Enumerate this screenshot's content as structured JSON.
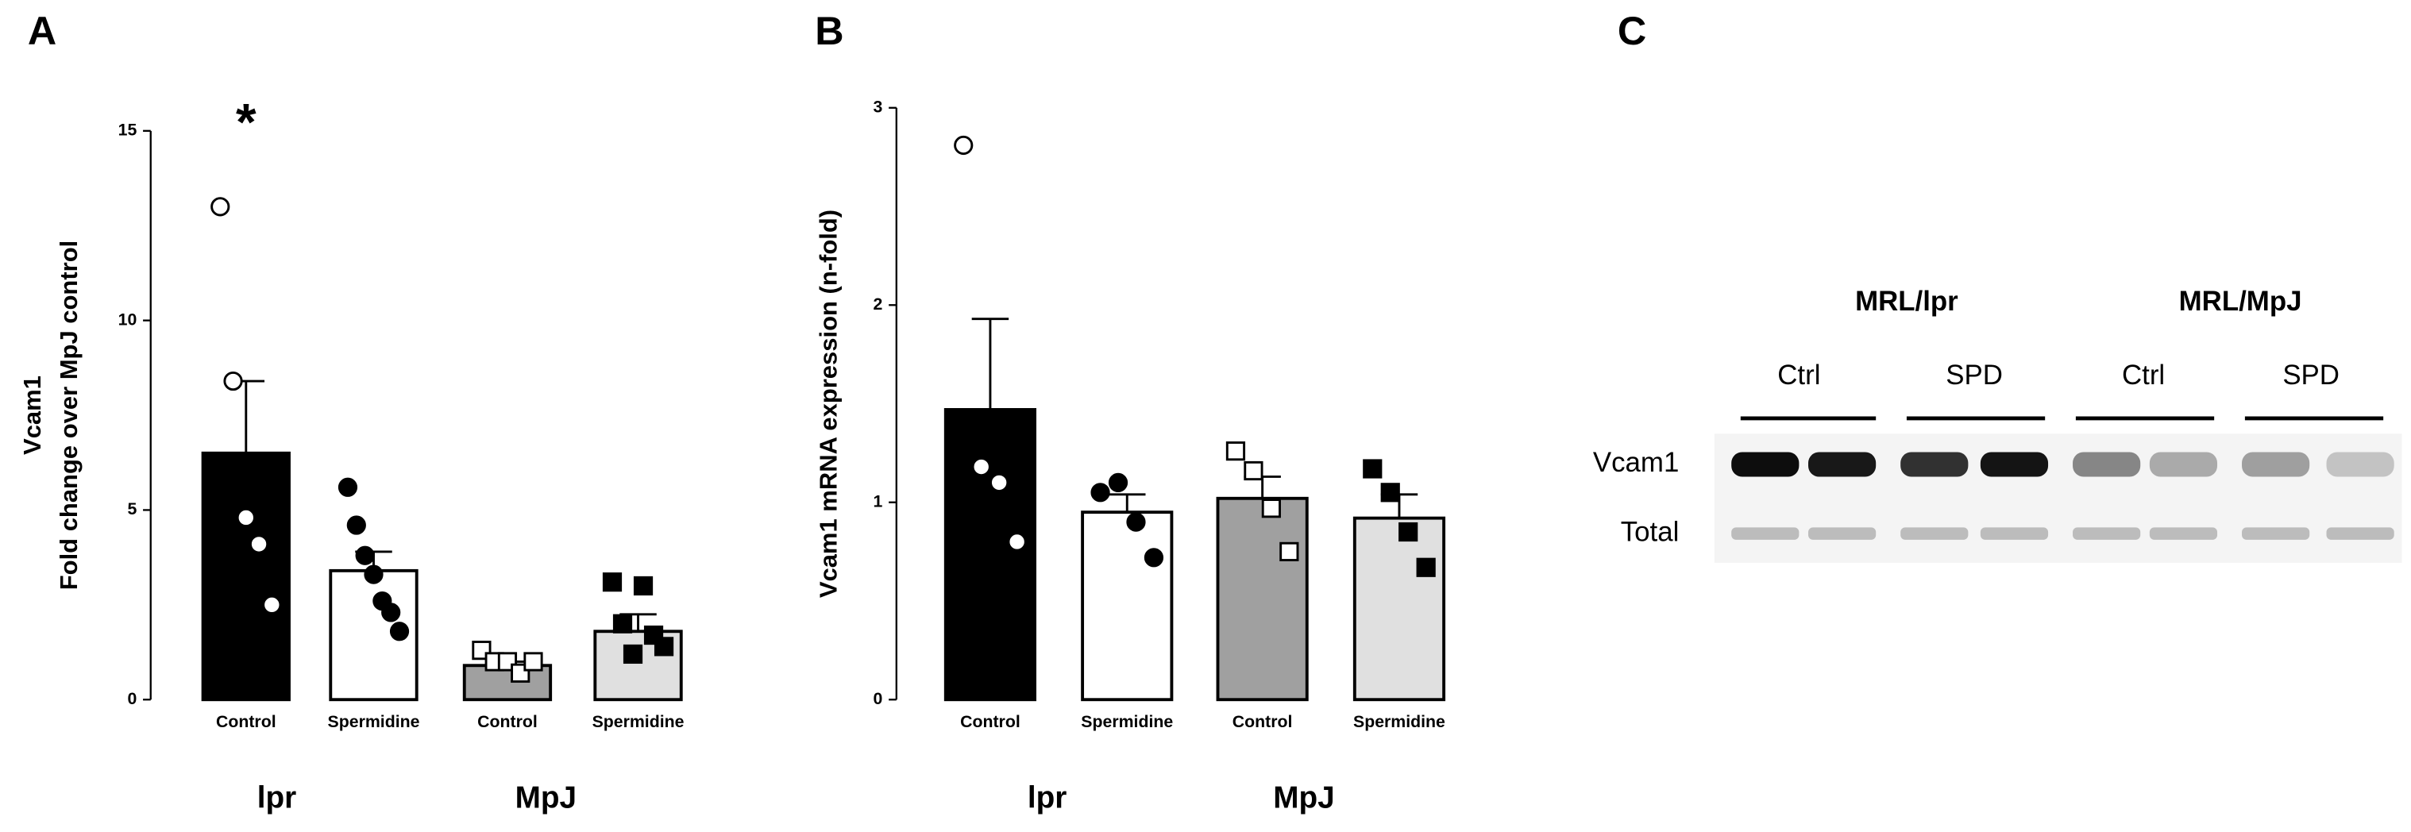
{
  "chart_data": [
    {
      "type": "bar",
      "panel": "A",
      "ylabel": [
        "Vcam1",
        "Fold change over MpJ control"
      ],
      "categories": [
        "Control",
        "Spermidine",
        "Control",
        "Spermidine"
      ],
      "groups": [
        "lpr",
        "MpJ"
      ],
      "values": [
        6.5,
        3.4,
        0.9,
        1.8
      ],
      "errors": [
        1.9,
        0.5,
        0.1,
        0.45
      ],
      "points": [
        [
          13.0,
          8.4,
          4.8,
          4.1,
          2.5
        ],
        [
          5.6,
          4.6,
          3.8,
          3.3,
          2.6,
          2.3,
          1.8
        ],
        [
          1.3,
          1.0,
          1.0,
          0.7,
          1.0
        ],
        [
          3.1,
          2.0,
          1.2,
          3.0,
          1.7,
          1.4
        ]
      ],
      "colors": [
        "#000000",
        "#ffffff",
        "#a0a0a0",
        "#e0e0e0"
      ],
      "markers": [
        "open-circle",
        "filled-circle",
        "open-square",
        "filled-square"
      ],
      "annotations": [
        {
          "category": 0,
          "text": "*"
        }
      ],
      "ylim": [
        0,
        15
      ],
      "yticks": [
        0,
        5,
        10,
        15
      ]
    },
    {
      "type": "bar",
      "panel": "B",
      "ylabel": [
        "Vcam1 mRNA expression (n-fold)"
      ],
      "categories": [
        "Control",
        "Spermidine",
        "Control",
        "Spermidine"
      ],
      "groups": [
        "lpr",
        "MpJ"
      ],
      "values": [
        1.47,
        0.95,
        1.02,
        0.92
      ],
      "errors": [
        0.46,
        0.09,
        0.11,
        0.12
      ],
      "points": [
        [
          2.81,
          1.18,
          1.1,
          0.8
        ],
        [
          1.05,
          1.1,
          0.9,
          0.72
        ],
        [
          1.26,
          1.16,
          0.97,
          0.75
        ],
        [
          1.17,
          1.05,
          0.85,
          0.67
        ]
      ],
      "colors": [
        "#000000",
        "#ffffff",
        "#a0a0a0",
        "#e0e0e0"
      ],
      "markers": [
        "open-circle",
        "filled-circle",
        "open-square",
        "filled-square"
      ],
      "annotations": [],
      "ylim": [
        0,
        3
      ],
      "yticks": [
        0,
        1,
        2,
        3
      ]
    }
  ],
  "blot": {
    "panel": "C",
    "groups": [
      "MRL/lpr",
      "MRL/MpJ"
    ],
    "lanes": [
      "Ctrl",
      "SPD",
      "Ctrl",
      "SPD"
    ],
    "rows": [
      "Vcam1",
      "Total"
    ]
  }
}
